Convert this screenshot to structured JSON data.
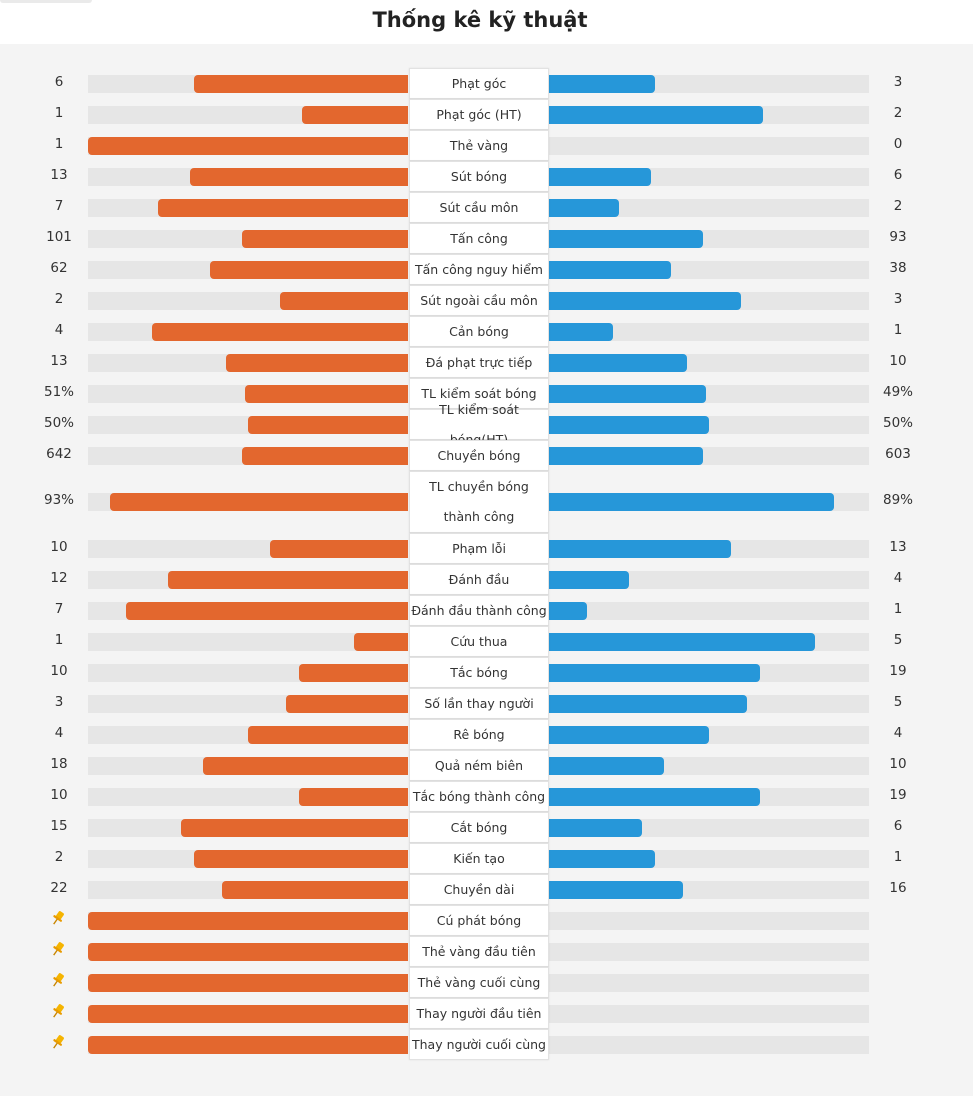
{
  "page": {
    "title": "Thống kê kỹ thuật"
  },
  "colors": {
    "home": "#e3672e",
    "away": "#2697d9",
    "track": "#e6e6e6",
    "pin": "#f5b400"
  },
  "chart_data": {
    "type": "bar",
    "orientation": "diverging-horizontal",
    "title": "Thống kê kỹ thuật",
    "series": [
      {
        "name": "Home",
        "color": "#e3672e"
      },
      {
        "name": "Away",
        "color": "#2697d9"
      }
    ],
    "rows": [
      {
        "label": "Phạt góc",
        "home": "6",
        "away": "3",
        "home_share": 0.67,
        "away_share": 0.33
      },
      {
        "label": "Phạt góc (HT)",
        "home": "1",
        "away": "2",
        "home_share": 0.33,
        "away_share": 0.67
      },
      {
        "label": "Thẻ vàng",
        "home": "1",
        "away": "0",
        "home_share": 1.0,
        "away_share": 0.0
      },
      {
        "label": "Sút bóng",
        "home": "13",
        "away": "6",
        "home_share": 0.68,
        "away_share": 0.32
      },
      {
        "label": "Sút cầu môn",
        "home": "7",
        "away": "2",
        "home_share": 0.78,
        "away_share": 0.22
      },
      {
        "label": "Tấn công",
        "home": "101",
        "away": "93",
        "home_share": 0.52,
        "away_share": 0.48
      },
      {
        "label": "Tấn công nguy hiểm",
        "home": "62",
        "away": "38",
        "home_share": 0.62,
        "away_share": 0.38
      },
      {
        "label": "Sút ngoài cầu môn",
        "home": "2",
        "away": "3",
        "home_share": 0.4,
        "away_share": 0.6
      },
      {
        "label": "Cản bóng",
        "home": "4",
        "away": "1",
        "home_share": 0.8,
        "away_share": 0.2
      },
      {
        "label": "Đá phạt trực tiếp",
        "home": "13",
        "away": "10",
        "home_share": 0.57,
        "away_share": 0.43
      },
      {
        "label": "TL kiểm soát bóng",
        "home": "51%",
        "away": "49%",
        "home_share": 0.51,
        "away_share": 0.49
      },
      {
        "label": "TL kiểm soát bóng(HT)",
        "home": "50%",
        "away": "50%",
        "home_share": 0.5,
        "away_share": 0.5
      },
      {
        "label": "Chuyền bóng",
        "home": "642",
        "away": "603",
        "home_share": 0.52,
        "away_share": 0.48
      },
      {
        "label": "TL chuyền bóng thành công",
        "home": "93%",
        "away": "89%",
        "home_share": 0.93,
        "away_share": 0.89
      },
      {
        "label": "Phạm lỗi",
        "home": "10",
        "away": "13",
        "home_share": 0.43,
        "away_share": 0.57
      },
      {
        "label": "Đánh đầu",
        "home": "12",
        "away": "4",
        "home_share": 0.75,
        "away_share": 0.25
      },
      {
        "label": "Đánh đầu thành công",
        "home": "7",
        "away": "1",
        "home_share": 0.88,
        "away_share": 0.12
      },
      {
        "label": "Cứu thua",
        "home": "1",
        "away": "5",
        "home_share": 0.17,
        "away_share": 0.83
      },
      {
        "label": "Tắc bóng",
        "home": "10",
        "away": "19",
        "home_share": 0.34,
        "away_share": 0.66
      },
      {
        "label": "Số lần thay người",
        "home": "3",
        "away": "5",
        "home_share": 0.38,
        "away_share": 0.62
      },
      {
        "label": "Rê bóng",
        "home": "4",
        "away": "4",
        "home_share": 0.5,
        "away_share": 0.5
      },
      {
        "label": "Quả ném biên",
        "home": "18",
        "away": "10",
        "home_share": 0.64,
        "away_share": 0.36
      },
      {
        "label": "Tắc bóng thành công",
        "home": "10",
        "away": "19",
        "home_share": 0.34,
        "away_share": 0.66
      },
      {
        "label": "Cắt bóng",
        "home": "15",
        "away": "6",
        "home_share": 0.71,
        "away_share": 0.29
      },
      {
        "label": "Kiến tạo",
        "home": "2",
        "away": "1",
        "home_share": 0.67,
        "away_share": 0.33
      },
      {
        "label": "Chuyền dài",
        "home": "22",
        "away": "16",
        "home_share": 0.58,
        "away_share": 0.42
      },
      {
        "label": "Cú phát bóng",
        "home": "",
        "away": "",
        "home_share": 1.0,
        "away_share": 0.0,
        "home_icon": "pin-icon"
      },
      {
        "label": "Thẻ vàng đầu tiên",
        "home": "",
        "away": "",
        "home_share": 1.0,
        "away_share": 0.0,
        "home_icon": "pin-icon"
      },
      {
        "label": "Thẻ vàng cuối cùng",
        "home": "",
        "away": "",
        "home_share": 1.0,
        "away_share": 0.0,
        "home_icon": "pin-icon"
      },
      {
        "label": "Thay người đầu tiên",
        "home": "",
        "away": "",
        "home_share": 1.0,
        "away_share": 0.0,
        "home_icon": "pin-icon"
      },
      {
        "label": "Thay người cuối cùng",
        "home": "",
        "away": "",
        "home_share": 1.0,
        "away_share": 0.0,
        "home_icon": "pin-icon"
      }
    ]
  }
}
